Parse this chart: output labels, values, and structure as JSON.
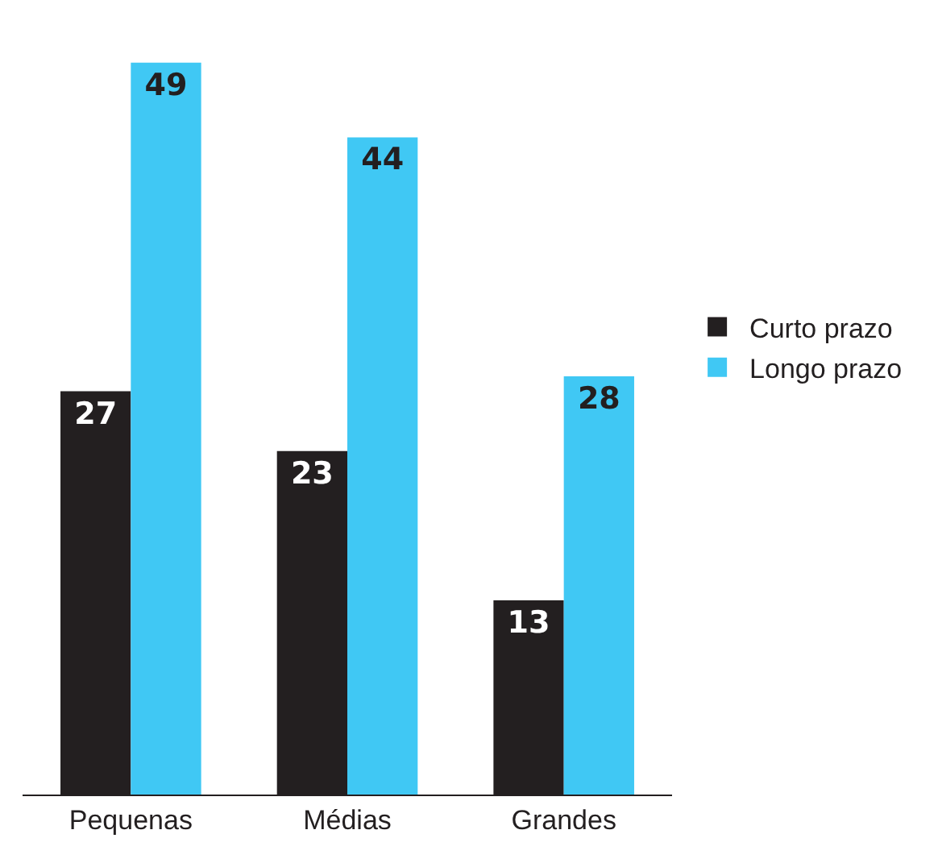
{
  "chart_data": {
    "type": "bar",
    "categories": [
      "Pequenas",
      "Médias",
      "Grandes"
    ],
    "series": [
      {
        "name": "Curto prazo",
        "color": "#231f20",
        "values": [
          27,
          23,
          13
        ]
      },
      {
        "name": "Longo prazo",
        "color": "#40c8f4",
        "values": [
          49,
          44,
          28
        ]
      }
    ],
    "data_labels": true,
    "grid": false,
    "legend": "right"
  }
}
